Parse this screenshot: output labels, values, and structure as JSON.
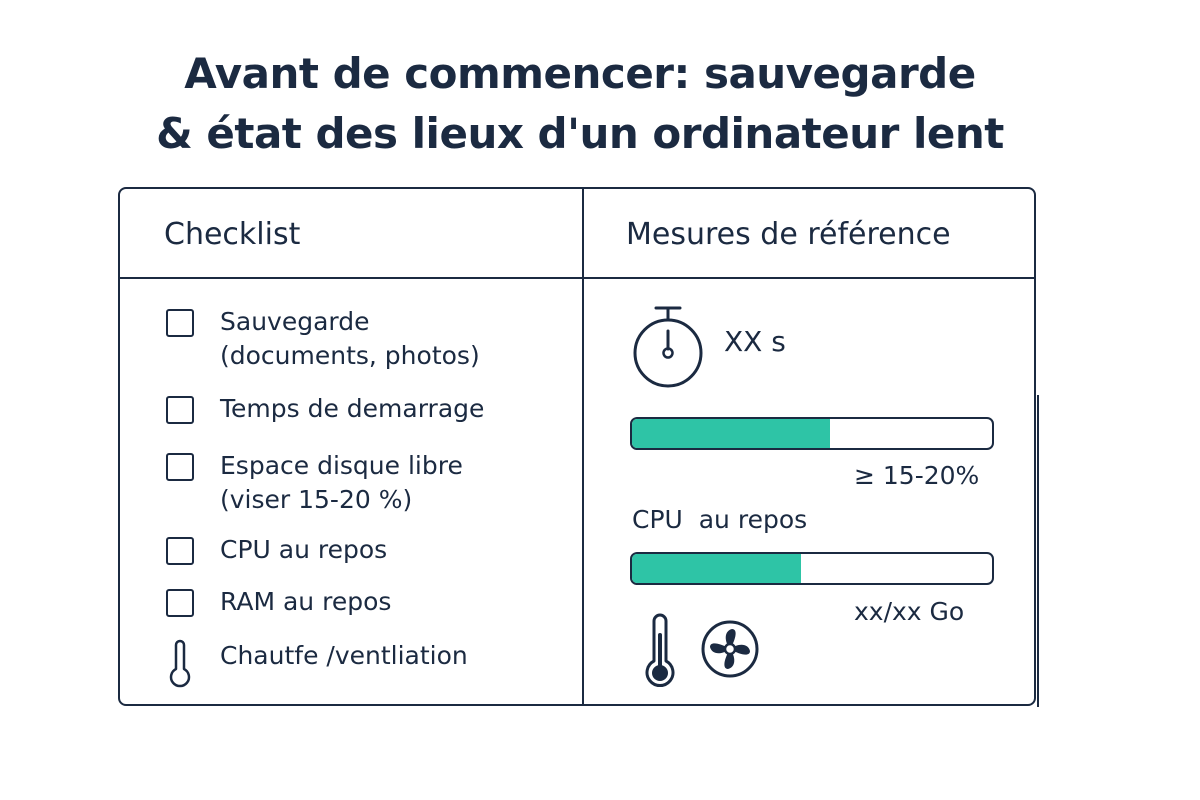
{
  "title": {
    "line1": "Avant de commencer: sauvegarde",
    "line2": "& état des lieux d'un ordinateur lent"
  },
  "checklist": {
    "heading": "Checklist",
    "items": [
      {
        "line1": "Sauvegarde",
        "line2": "(documents, photos)",
        "icon": "checkbox"
      },
      {
        "line1": "Temps de demarrage",
        "icon": "checkbox"
      },
      {
        "line1": "Espace disque libre",
        "line2": "(viser 15-20 %)",
        "icon": "checkbox"
      },
      {
        "line1": "CPU au repos",
        "icon": "checkbox"
      },
      {
        "line1": "RAM au repos",
        "icon": "checkbox"
      },
      {
        "line1": "Chautfe /ventliation",
        "icon": "thermometer-icon"
      }
    ]
  },
  "measures": {
    "heading": "Mesures de référence",
    "timer": {
      "icon": "stopwatch-icon",
      "value": "XX s"
    },
    "disk_bar": {
      "fill_fraction": 0.55,
      "caption": "≥ 15-20%"
    },
    "cpu_label": "CPU  au repos",
    "ram_bar": {
      "fill_fraction": 0.47,
      "caption": "xx/xx Go"
    },
    "icons": [
      "thermometer-icon",
      "fan-icon"
    ]
  },
  "colors": {
    "ink": "#1b2a41",
    "accent": "#2ec4a6",
    "background": "#ffffff"
  }
}
